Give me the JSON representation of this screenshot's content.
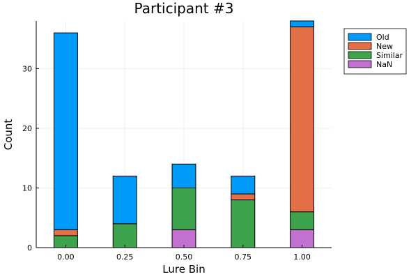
{
  "chart_data": {
    "type": "bar",
    "stacked": true,
    "title": "Participant #3",
    "xlabel": "Lure Bin",
    "ylabel": "Count",
    "categories": [
      "0.00",
      "0.25",
      "0.50",
      "0.75",
      "1.00"
    ],
    "x_ticks": [
      "0.00",
      "0.25",
      "0.50",
      "0.75",
      "1.00"
    ],
    "y_ticks": [
      "0",
      "10",
      "20",
      "30"
    ],
    "ylim": [
      0,
      38
    ],
    "grid": true,
    "legend_position": "top-right",
    "series": [
      {
        "name": "NaN",
        "color": "#c271d2",
        "values": [
          0,
          0,
          3,
          0,
          3
        ]
      },
      {
        "name": "Similar",
        "color": "#3da44d",
        "values": [
          2,
          4,
          7,
          8,
          3
        ]
      },
      {
        "name": "New",
        "color": "#e26f46",
        "values": [
          1,
          0,
          0,
          1,
          31
        ]
      },
      {
        "name": "Old",
        "color": "#009af9",
        "values": [
          33,
          8,
          4,
          3,
          1
        ]
      }
    ],
    "legend": [
      {
        "name": "Old",
        "color": "#009af9"
      },
      {
        "name": "New",
        "color": "#e26f46"
      },
      {
        "name": "Similar",
        "color": "#3da44d"
      },
      {
        "name": "NaN",
        "color": "#c271d2"
      }
    ]
  }
}
